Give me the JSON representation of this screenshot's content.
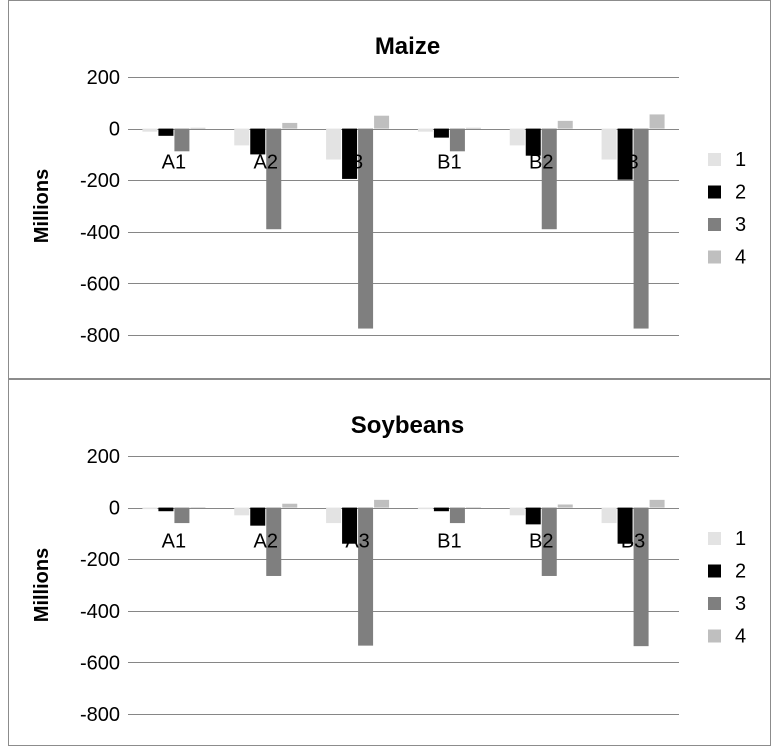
{
  "chart_data": [
    {
      "type": "bar",
      "title": "Maize",
      "xlabel": "",
      "ylabel": "Millions",
      "ylim": [
        -800,
        200
      ],
      "yticks": [
        200,
        0,
        -200,
        -400,
        -600,
        -800
      ],
      "grid": true,
      "legend_position": "right",
      "categories": [
        "A1",
        "A2",
        "A3",
        "B1",
        "B2",
        "B3"
      ],
      "category_labels_visible": [
        "A1",
        "A2",
        "3",
        "B1",
        "B2",
        "3"
      ],
      "series": [
        {
          "name": "1",
          "color": "#e3e3e3",
          "values": [
            -12,
            -65,
            -120,
            -12,
            -65,
            -120
          ]
        },
        {
          "name": "2",
          "color": "#000000",
          "values": [
            -28,
            -100,
            -195,
            -35,
            -105,
            -198
          ]
        },
        {
          "name": "3",
          "color": "#7f7f7f",
          "values": [
            -88,
            -390,
            -775,
            -88,
            -390,
            -775
          ]
        },
        {
          "name": "4",
          "color": "#bfbfbf",
          "values": [
            3,
            22,
            50,
            3,
            30,
            55
          ]
        }
      ]
    },
    {
      "type": "bar",
      "title": "Soybeans",
      "xlabel": "",
      "ylabel": "Millions",
      "ylim": [
        -800,
        200
      ],
      "yticks": [
        200,
        0,
        -200,
        -400,
        -600,
        -800
      ],
      "grid": true,
      "legend_position": "right",
      "categories": [
        "A1",
        "A2",
        "A3",
        "B1",
        "B2",
        "B3"
      ],
      "category_labels_visible": [
        "A1",
        "A2",
        "A3",
        "B1",
        "B2",
        "B3"
      ],
      "series": [
        {
          "name": "1",
          "color": "#e3e3e3",
          "values": [
            -6,
            -30,
            -60,
            -6,
            -30,
            -60
          ]
        },
        {
          "name": "2",
          "color": "#000000",
          "values": [
            -14,
            -70,
            -140,
            -14,
            -65,
            -140
          ]
        },
        {
          "name": "3",
          "color": "#7f7f7f",
          "values": [
            -60,
            -265,
            -535,
            -60,
            -265,
            -537
          ]
        },
        {
          "name": "4",
          "color": "#bfbfbf",
          "values": [
            2,
            15,
            30,
            2,
            12,
            30
          ]
        }
      ]
    }
  ]
}
